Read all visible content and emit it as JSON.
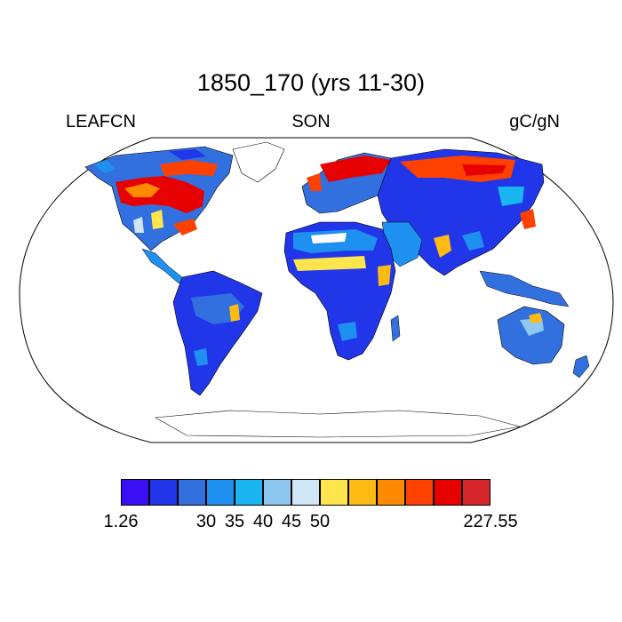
{
  "title": "1850_170 (yrs 11-30)",
  "variable": "LEAFCN",
  "season": "SON",
  "units": "gC/gN",
  "colorbar": {
    "colors": [
      "#3b0ff5",
      "#2136e8",
      "#3270e0",
      "#1e90f0",
      "#19b6f2",
      "#8cc8ef",
      "#cfe6f7",
      "#ffe54d",
      "#ffba14",
      "#ff8a00",
      "#ff4100",
      "#e60000",
      "#d7262b"
    ],
    "tick_labels": [
      "1.26",
      "30",
      "35",
      "40",
      "45",
      "50",
      "227.55"
    ]
  },
  "icon_names": [
    "world-map-land-regions"
  ]
}
